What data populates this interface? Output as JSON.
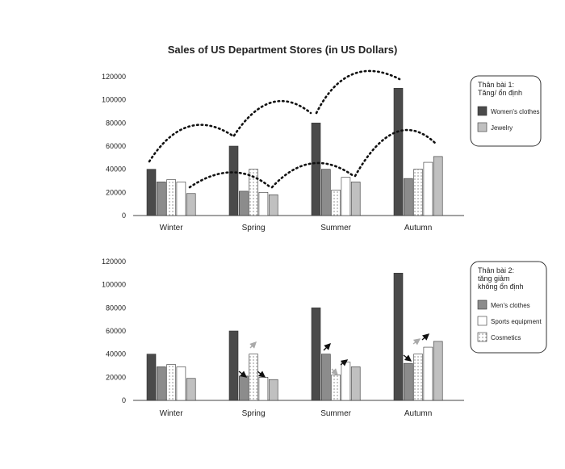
{
  "title": "Sales of US Department Stores (in US Dollars)",
  "colors": {
    "womens_clothes": "#4a4a4a",
    "mens_clothes": "#8c8c8c",
    "cosmetics": "#ffffff",
    "sports_equipment": "#ffffff",
    "jewelry": "#c0c0c0"
  },
  "chart_data": [
    {
      "type": "bar",
      "title": "Sales of US Department Stores (in US Dollars)",
      "categories": [
        "Winter",
        "Spring",
        "Summer",
        "Autumn"
      ],
      "yticks": [
        "0",
        "20000",
        "40000",
        "60000",
        "80000",
        "100000",
        "120000"
      ],
      "ylim": [
        0,
        120000
      ],
      "series": [
        {
          "key": "womens_clothes",
          "values": [
            40000,
            60000,
            80000,
            110000
          ]
        },
        {
          "key": "mens_clothes",
          "values": [
            29000,
            21000,
            40000,
            32000
          ]
        },
        {
          "key": "cosmetics",
          "values": [
            31000,
            40000,
            22000,
            40000
          ]
        },
        {
          "key": "sports_equipment",
          "values": [
            29000,
            20000,
            33000,
            46000
          ]
        },
        {
          "key": "jewelry",
          "values": [
            19000,
            18000,
            29000,
            51000
          ]
        }
      ],
      "legend": {
        "title_lines": [
          "Thân bài 1:",
          "Tăng/ ổn định"
        ],
        "items": [
          {
            "label": "Women's clothes",
            "series": "womens_clothes"
          },
          {
            "label": "Jewelry",
            "series": "jewelry"
          }
        ]
      },
      "annotations": "dotted arcs linking Women's clothes and Jewelry bars across seasons"
    },
    {
      "type": "bar",
      "categories": [
        "Winter",
        "Spring",
        "Summer",
        "Autumn"
      ],
      "yticks": [
        "0",
        "20000",
        "40000",
        "60000",
        "80000",
        "100000",
        "120000"
      ],
      "ylim": [
        0,
        120000
      ],
      "series": [
        {
          "key": "womens_clothes",
          "values": [
            40000,
            60000,
            80000,
            110000
          ]
        },
        {
          "key": "mens_clothes",
          "values": [
            29000,
            21000,
            40000,
            32000
          ]
        },
        {
          "key": "cosmetics",
          "values": [
            31000,
            40000,
            22000,
            40000
          ]
        },
        {
          "key": "sports_equipment",
          "values": [
            29000,
            20000,
            33000,
            46000
          ]
        },
        {
          "key": "jewelry",
          "values": [
            19000,
            18000,
            29000,
            51000
          ]
        }
      ],
      "legend": {
        "title_lines": [
          "Thân bài 2:",
          "tăng giảm",
          "không ổn định"
        ],
        "items": [
          {
            "label": "Men's clothes",
            "series": "mens_clothes"
          },
          {
            "label": "Sports equipment",
            "series": "sports_equipment"
          },
          {
            "label": "Cosmetics",
            "series": "cosmetics"
          }
        ]
      },
      "annotations": "small arrows on Men's clothes, Sports equipment and Cosmetics bars showing increase or decrease"
    }
  ]
}
